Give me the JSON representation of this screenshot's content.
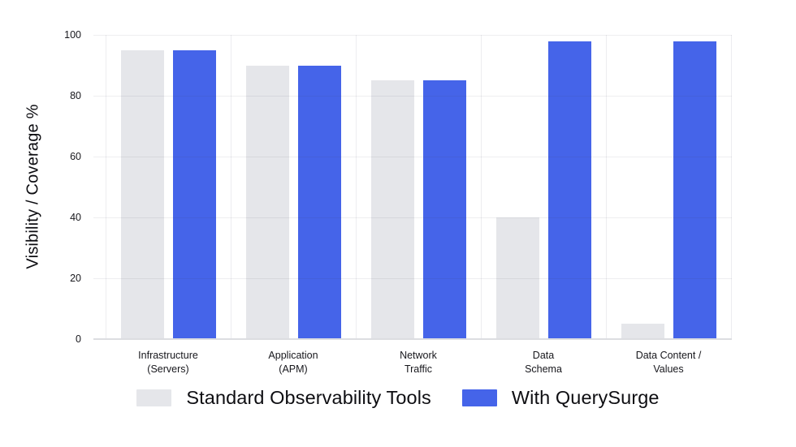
{
  "chart_data": {
    "type": "bar",
    "title": "",
    "xlabel": "",
    "ylabel": "Visibility / Coverage %",
    "ylim": [
      0,
      100
    ],
    "yticks": [
      0,
      20,
      40,
      60,
      80,
      100
    ],
    "grid": true,
    "legend_position": "bottom-center",
    "categories": [
      "Infrastructure (Servers)",
      "Application (APM)",
      "Network Traffic",
      "Data Schema",
      "Data Content / Values"
    ],
    "category_label_lines": [
      [
        "Infrastructure",
        "(Servers)"
      ],
      [
        "Application",
        "(APM)"
      ],
      [
        "Network",
        "Traffic"
      ],
      [
        "Data",
        "Schema"
      ],
      [
        "Data Content /",
        "Values"
      ]
    ],
    "series": [
      {
        "name": "Standard Observability Tools",
        "color": "#e5e6ea",
        "values": [
          95,
          90,
          85,
          40,
          5
        ]
      },
      {
        "name": "With QuerySurge",
        "color": "#4564e9",
        "values": [
          95,
          90,
          85,
          98,
          98
        ]
      }
    ]
  },
  "colors": {
    "background": "#ffffff",
    "gridline": "#ededf0",
    "axis_line": "#dcdde1",
    "tick_text": "#17171c",
    "title_text": "#0c0c10",
    "bar_standard": "#e5e6ea",
    "bar_querysurge": "#4564e9"
  }
}
